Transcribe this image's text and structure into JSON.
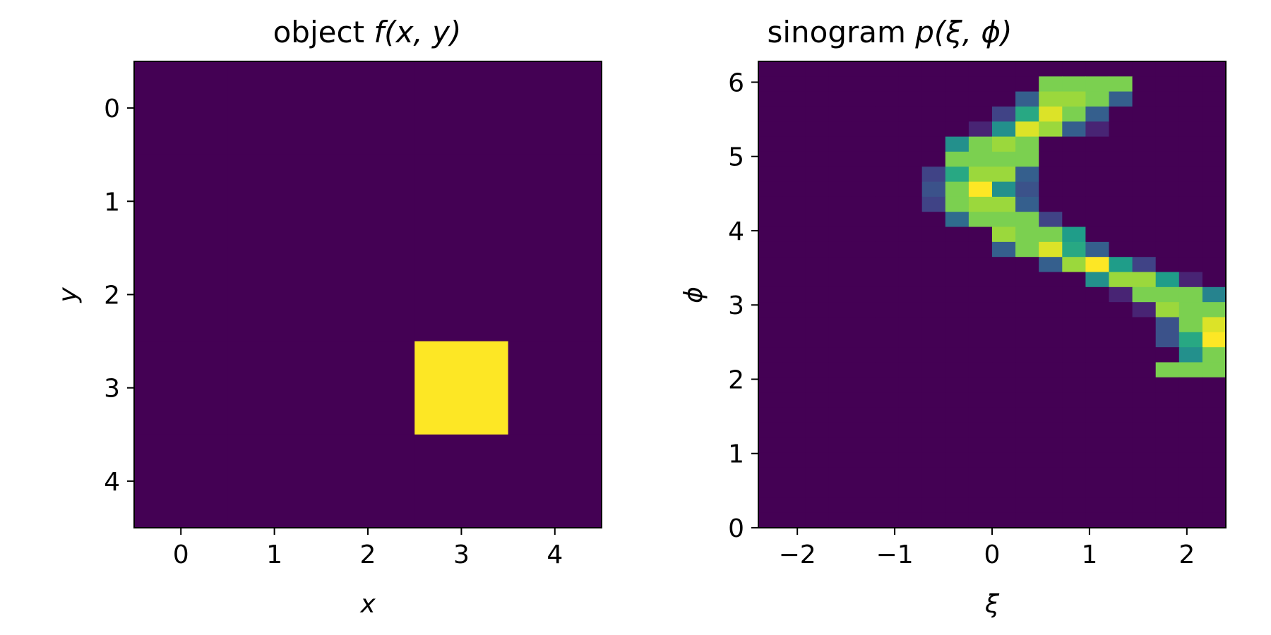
{
  "chart_data": [
    {
      "type": "heatmap",
      "title_plain": "object ",
      "title_math": "f(x, y)",
      "xlabel": "x",
      "ylabel": "y",
      "xlim": [
        -0.5,
        4.5
      ],
      "ylim": [
        4.5,
        -0.5
      ],
      "x_ticks": [
        0,
        1,
        2,
        3,
        4
      ],
      "y_ticks": [
        0,
        1,
        2,
        3,
        4
      ],
      "colormap": "viridis",
      "values": [
        [
          0,
          0,
          0,
          0,
          0
        ],
        [
          0,
          0,
          0,
          0,
          0
        ],
        [
          0,
          0,
          0,
          0,
          0
        ],
        [
          0,
          0,
          0,
          1,
          0
        ],
        [
          0,
          0,
          0,
          0,
          0
        ]
      ]
    },
    {
      "type": "heatmap",
      "title_plain": "sinogram ",
      "title_math": "p(ξ, ϕ)",
      "xlabel": "ξ",
      "ylabel": "ϕ",
      "xlim": [
        -2.4,
        2.4
      ],
      "ylim": [
        0,
        6.28
      ],
      "x_ticks": [
        -2,
        -1,
        0,
        1,
        2
      ],
      "x_tick_labels": [
        "−2",
        "−1",
        "0",
        "1",
        "2"
      ],
      "y_ticks": [
        0,
        1,
        2,
        3,
        4,
        5,
        6
      ],
      "colormap": "viridis",
      "cols": 20,
      "rows": 31,
      "values_row0_is_top": [
        [
          0,
          0,
          0,
          0,
          0,
          0,
          0,
          0,
          0,
          0,
          0,
          0,
          0,
          0,
          0,
          0,
          0,
          0,
          0,
          0
        ],
        [
          0,
          0,
          0,
          0,
          0,
          0,
          0,
          0,
          0,
          0,
          0,
          0,
          0.8,
          0.8,
          0.8,
          0.8,
          0,
          0,
          0,
          0
        ],
        [
          0,
          0,
          0,
          0,
          0,
          0,
          0,
          0,
          0,
          0,
          0,
          0.3,
          0.85,
          0.85,
          0.8,
          0.3,
          0,
          0,
          0,
          0
        ],
        [
          0,
          0,
          0,
          0,
          0,
          0,
          0,
          0,
          0,
          0,
          0.2,
          0.6,
          0.95,
          0.8,
          0.3,
          0,
          0,
          0,
          0,
          0
        ],
        [
          0,
          0,
          0,
          0,
          0,
          0,
          0,
          0,
          0,
          0.1,
          0.5,
          0.95,
          0.85,
          0.3,
          0.1,
          0,
          0,
          0,
          0,
          0
        ],
        [
          0,
          0,
          0,
          0,
          0,
          0,
          0,
          0,
          0.5,
          0.8,
          0.85,
          0.8,
          0,
          0,
          0,
          0,
          0,
          0,
          0,
          0
        ],
        [
          0,
          0,
          0,
          0,
          0,
          0,
          0,
          0,
          0.8,
          0.8,
          0.8,
          0.8,
          0,
          0,
          0,
          0,
          0,
          0,
          0,
          0
        ],
        [
          0,
          0,
          0,
          0,
          0,
          0,
          0,
          0.2,
          0.6,
          0.85,
          0.85,
          0.3,
          0,
          0,
          0,
          0,
          0,
          0,
          0,
          0
        ],
        [
          0,
          0,
          0,
          0,
          0,
          0,
          0,
          0.25,
          0.8,
          1.0,
          0.5,
          0.25,
          0,
          0,
          0,
          0,
          0,
          0,
          0,
          0
        ],
        [
          0,
          0,
          0,
          0,
          0,
          0,
          0,
          0.2,
          0.8,
          0.85,
          0.85,
          0.3,
          0,
          0,
          0,
          0,
          0,
          0,
          0,
          0
        ],
        [
          0,
          0,
          0,
          0,
          0,
          0,
          0,
          0,
          0.35,
          0.8,
          0.8,
          0.8,
          0.2,
          0,
          0,
          0,
          0,
          0,
          0,
          0
        ],
        [
          0,
          0,
          0,
          0,
          0,
          0,
          0,
          0,
          0,
          0,
          0.85,
          0.8,
          0.8,
          0.55,
          0,
          0,
          0,
          0,
          0,
          0
        ],
        [
          0,
          0,
          0,
          0,
          0,
          0,
          0,
          0,
          0,
          0,
          0.3,
          0.8,
          0.95,
          0.6,
          0.3,
          0,
          0,
          0,
          0,
          0
        ],
        [
          0,
          0,
          0,
          0,
          0,
          0,
          0,
          0,
          0,
          0,
          0,
          0,
          0.3,
          0.85,
          1.0,
          0.55,
          0.2,
          0,
          0,
          0
        ],
        [
          0,
          0,
          0,
          0,
          0,
          0,
          0,
          0,
          0,
          0,
          0,
          0,
          0,
          0,
          0.5,
          0.85,
          0.85,
          0.55,
          0.1,
          0
        ],
        [
          0,
          0,
          0,
          0,
          0,
          0,
          0,
          0,
          0,
          0,
          0,
          0,
          0,
          0,
          0,
          0.1,
          0.8,
          0.8,
          0.8,
          0.45
        ],
        [
          0,
          0,
          0,
          0,
          0,
          0,
          0,
          0,
          0,
          0,
          0,
          0,
          0,
          0,
          0,
          0,
          0.1,
          0.85,
          0.8,
          0.8
        ],
        [
          0,
          0,
          0,
          0,
          0,
          0,
          0,
          0,
          0,
          0,
          0,
          0,
          0,
          0,
          0,
          0,
          0,
          0.25,
          0.8,
          0.95
        ],
        [
          0,
          0,
          0,
          0,
          0,
          0,
          0,
          0,
          0,
          0,
          0,
          0,
          0,
          0,
          0,
          0,
          0,
          0.25,
          0.6,
          1.0
        ],
        [
          0,
          0,
          0,
          0,
          0,
          0,
          0,
          0,
          0,
          0,
          0,
          0,
          0,
          0,
          0,
          0,
          0,
          0,
          0.5,
          0.8
        ],
        [
          0,
          0,
          0,
          0,
          0,
          0,
          0,
          0,
          0,
          0,
          0,
          0,
          0,
          0,
          0,
          0,
          0,
          0.8,
          0.8,
          0.8
        ],
        [
          0,
          0,
          0,
          0,
          0,
          0,
          0,
          0,
          0,
          0,
          0,
          0,
          0,
          0,
          0,
          0,
          0,
          0,
          0,
          0
        ],
        [
          0,
          0,
          0,
          0,
          0,
          0,
          0,
          0,
          0,
          0,
          0,
          0,
          0,
          0,
          0,
          0,
          0,
          0,
          0,
          0
        ],
        [
          0,
          0,
          0,
          0,
          0,
          0,
          0,
          0,
          0,
          0,
          0,
          0,
          0,
          0,
          0,
          0,
          0,
          0,
          0,
          0
        ],
        [
          0,
          0,
          0,
          0,
          0,
          0,
          0,
          0,
          0,
          0,
          0,
          0,
          0,
          0,
          0,
          0,
          0,
          0,
          0,
          0
        ],
        [
          0,
          0,
          0,
          0,
          0,
          0,
          0,
          0,
          0,
          0,
          0,
          0,
          0,
          0,
          0,
          0,
          0,
          0,
          0,
          0
        ],
        [
          0,
          0,
          0,
          0,
          0,
          0,
          0,
          0,
          0,
          0,
          0,
          0,
          0,
          0,
          0,
          0,
          0,
          0,
          0,
          0
        ],
        [
          0,
          0,
          0,
          0,
          0,
          0,
          0,
          0,
          0,
          0,
          0,
          0,
          0,
          0,
          0,
          0,
          0,
          0,
          0,
          0
        ],
        [
          0,
          0,
          0,
          0,
          0,
          0,
          0,
          0,
          0,
          0,
          0,
          0,
          0,
          0,
          0,
          0,
          0,
          0,
          0,
          0
        ],
        [
          0,
          0,
          0,
          0,
          0,
          0,
          0,
          0,
          0,
          0,
          0,
          0,
          0,
          0,
          0,
          0,
          0,
          0,
          0,
          0
        ],
        [
          0,
          0,
          0,
          0,
          0,
          0,
          0,
          0,
          0,
          0,
          0,
          0,
          0,
          0,
          0,
          0,
          0,
          0,
          0,
          0
        ]
      ]
    }
  ]
}
